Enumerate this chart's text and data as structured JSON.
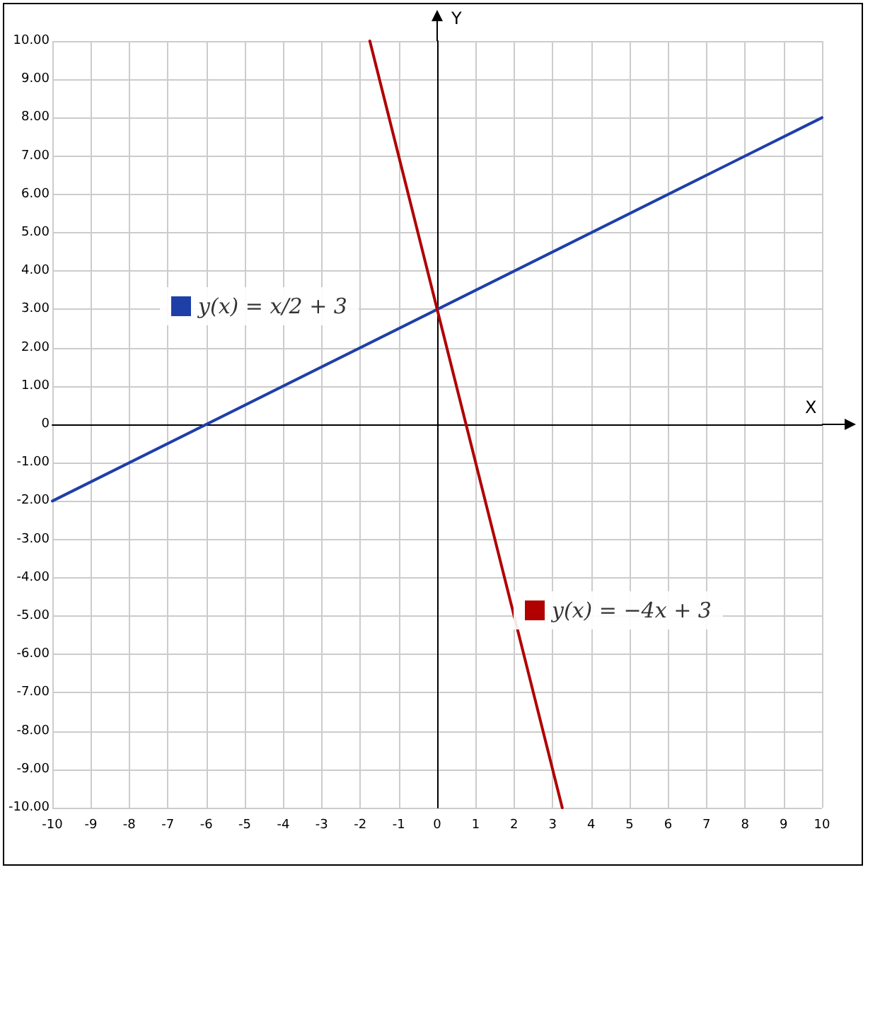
{
  "chart_data": {
    "type": "line",
    "xlabel": "X",
    "ylabel": "Y",
    "xlim": [
      -10,
      10
    ],
    "xticks": [
      -10,
      -9,
      -8,
      -7,
      -6,
      -5,
      -4,
      -3,
      -2,
      -1,
      0,
      1,
      2,
      3,
      4,
      5,
      6,
      7,
      8,
      9,
      10
    ],
    "ylim": [
      -10,
      10
    ],
    "yticks": [
      {
        "value": -10,
        "label": "-10.00"
      },
      {
        "value": -9,
        "label": "-9.00"
      },
      {
        "value": -8,
        "label": "-8.00"
      },
      {
        "value": -7,
        "label": "-7.00"
      },
      {
        "value": -6,
        "label": "-6.00"
      },
      {
        "value": -5,
        "label": "-5.00"
      },
      {
        "value": -4,
        "label": "-4.00"
      },
      {
        "value": -3,
        "label": "-3.00"
      },
      {
        "value": -2,
        "label": "-2.00"
      },
      {
        "value": -1,
        "label": "-1.00"
      },
      0,
      {
        "value": 1,
        "label": "1.00"
      },
      {
        "value": 2,
        "label": "2.00"
      },
      {
        "value": 3,
        "label": "3.00"
      },
      {
        "value": 4,
        "label": "4.00"
      },
      {
        "value": 5,
        "label": "5.00"
      },
      {
        "value": 6,
        "label": "6.00"
      },
      {
        "value": 7,
        "label": "7.00"
      },
      {
        "value": 8,
        "label": "8.00"
      },
      {
        "value": 9,
        "label": "9.00"
      },
      {
        "value": 10,
        "label": "10.00"
      }
    ],
    "grid": true,
    "legend": "left",
    "marker": "none",
    "line_style": "solid",
    "series": [
      {
        "name": "y(x) = x/2 + 3",
        "color": "#1f3fa8",
        "x": [
          -10,
          10
        ],
        "values": [
          -2,
          8
        ]
      },
      {
        "name": "y(x) = −4x + 3",
        "color": "#b00000",
        "x": [
          -1.75,
          3.25
        ],
        "values": [
          10,
          -10
        ]
      }
    ]
  }
}
